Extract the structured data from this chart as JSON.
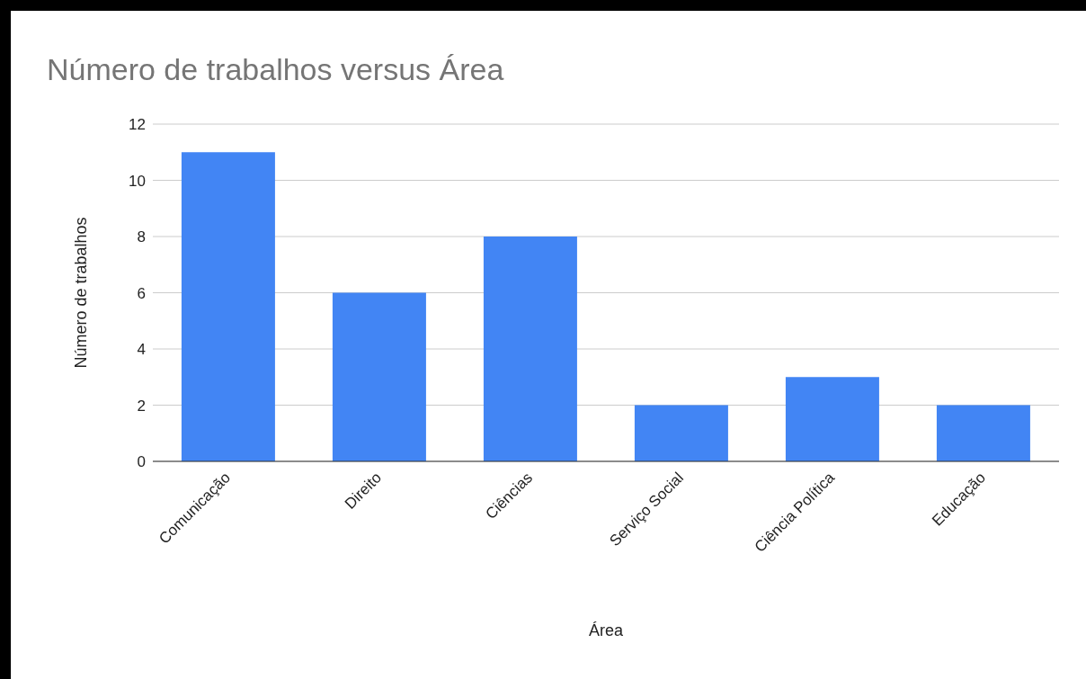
{
  "chart_data": {
    "type": "bar",
    "title": "Número de trabalhos versus Área",
    "xlabel": "Área",
    "ylabel": "Número de trabalhos",
    "categories": [
      "Comunicação",
      "Direito",
      "Ciências",
      "Serviço Social",
      "Ciência Política",
      "Educação"
    ],
    "values": [
      11,
      6,
      8,
      2,
      3,
      2
    ],
    "color": "#4285f4",
    "ylim": [
      0,
      12
    ],
    "yticks": [
      0,
      2,
      4,
      6,
      8,
      10,
      12
    ],
    "grid": "y"
  }
}
